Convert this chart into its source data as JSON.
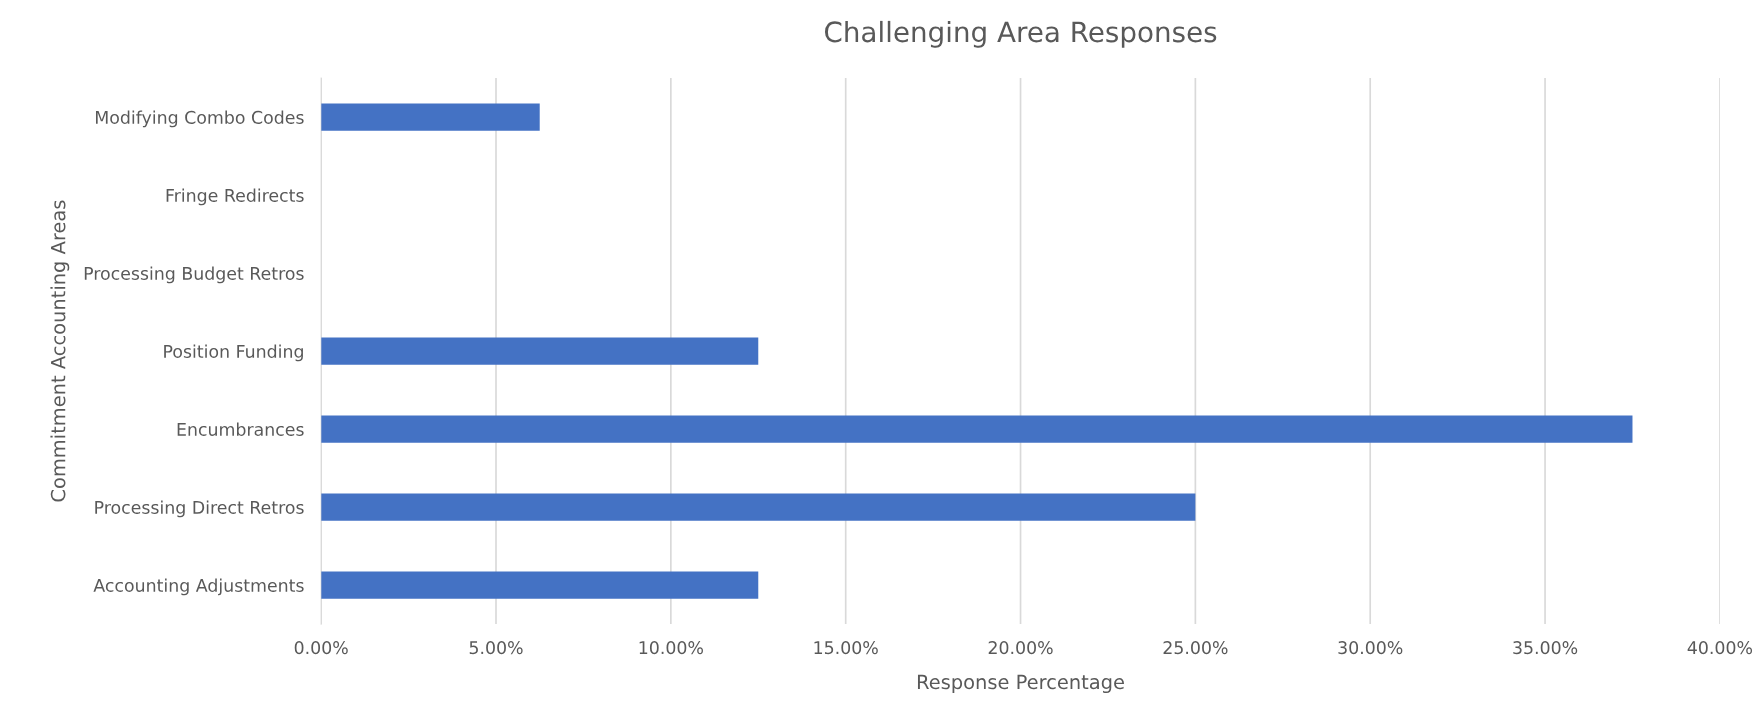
{
  "chart_data": {
    "type": "bar",
    "orientation": "horizontal",
    "title": "Challenging Area Responses",
    "xlabel": "Response Percentage",
    "ylabel": "Commitment Accounting Areas",
    "categories": [
      "Modifying Combo Codes",
      "Fringe Redirects",
      "Processing Budget Retros",
      "Position Funding",
      "Encumbrances",
      "Processing Direct Retros",
      "Accounting Adjustments"
    ],
    "values": [
      6.25,
      0,
      0,
      12.5,
      37.5,
      25,
      12.5
    ],
    "color": "#4472c4",
    "xlim": [
      0,
      40
    ],
    "xticks": [
      {
        "value": 0,
        "label": "0.00%"
      },
      {
        "value": 5,
        "label": "5.00%"
      },
      {
        "value": 10,
        "label": "10.00%"
      },
      {
        "value": 15,
        "label": "15.00%"
      },
      {
        "value": 20,
        "label": "20.00%"
      },
      {
        "value": 25,
        "label": "25.00%"
      },
      {
        "value": 30,
        "label": "30.00%"
      },
      {
        "value": 35,
        "label": "35.00%"
      },
      {
        "value": 40,
        "label": "40.00%"
      }
    ],
    "grid": "x",
    "legend": false
  }
}
